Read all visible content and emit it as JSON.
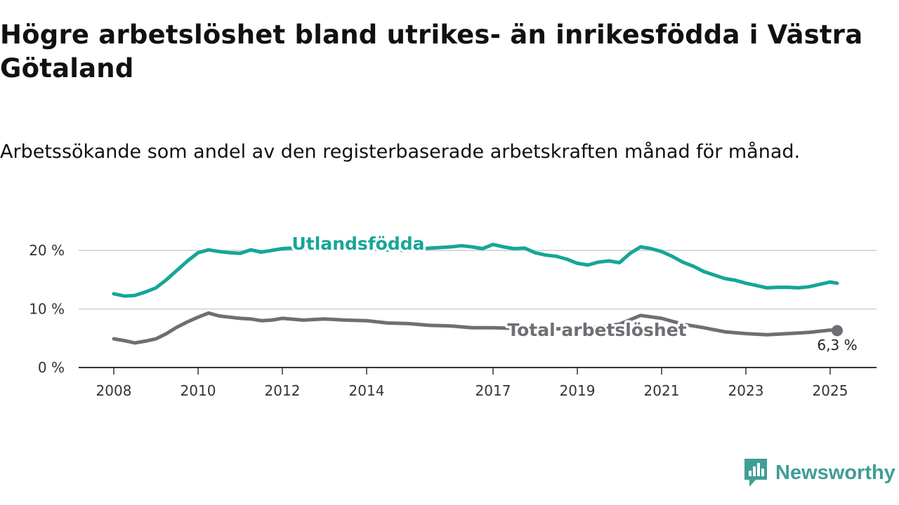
{
  "title": "Högre arbetslöshet bland utrikes- än inrikesfödda i Västra Götaland",
  "subtitle": "Arbetssökande som andel av den registerbaserade arbetskraften månad för månad.",
  "brand": {
    "name": "Newsworthy",
    "icon": "newsworthy-logo-icon",
    "color": "#3f9e96"
  },
  "chart_data": {
    "type": "line",
    "y_ticks": [
      "0 %",
      "10 %",
      "20 %"
    ],
    "y_tick_values": [
      0,
      10,
      20
    ],
    "ylim": [
      0,
      22
    ],
    "x_ticks": [
      "2008",
      "2010",
      "2012",
      "2014",
      "2017",
      "2019",
      "2021",
      "2023",
      "2025"
    ],
    "x_tick_values": [
      "2008-01",
      "2010-01",
      "2012-01",
      "2014-01",
      "2017-01",
      "2019-01",
      "2021-01",
      "2023-01",
      "2025-01"
    ],
    "xlim": [
      "2008-01",
      "2025-04"
    ],
    "grid": true,
    "end_label": "6,3 %",
    "series": [
      {
        "name": "Utlandsfödda",
        "color": "#17a598",
        "points": [
          [
            "2008-01",
            12.6
          ],
          [
            "2008-04",
            12.2
          ],
          [
            "2008-07",
            12.3
          ],
          [
            "2008-10",
            12.9
          ],
          [
            "2009-01",
            13.6
          ],
          [
            "2009-04",
            15.0
          ],
          [
            "2009-07",
            16.6
          ],
          [
            "2009-10",
            18.2
          ],
          [
            "2010-01",
            19.6
          ],
          [
            "2010-04",
            20.1
          ],
          [
            "2010-07",
            19.8
          ],
          [
            "2010-10",
            19.6
          ],
          [
            "2011-01",
            19.5
          ],
          [
            "2011-04",
            20.1
          ],
          [
            "2011-07",
            19.7
          ],
          [
            "2011-10",
            20.0
          ],
          [
            "2012-01",
            20.3
          ],
          [
            "2012-07",
            20.5
          ],
          [
            "2013-01",
            20.6
          ],
          [
            "2013-07",
            20.4
          ],
          [
            "2014-01",
            20.3
          ],
          [
            "2014-07",
            20.1
          ],
          [
            "2015-01",
            20.0
          ],
          [
            "2015-07",
            20.4
          ],
          [
            "2016-01",
            20.6
          ],
          [
            "2016-04",
            20.8
          ],
          [
            "2016-07",
            20.6
          ],
          [
            "2016-10",
            20.3
          ],
          [
            "2017-01",
            21.0
          ],
          [
            "2017-04",
            20.6
          ],
          [
            "2017-07",
            20.3
          ],
          [
            "2017-10",
            20.4
          ],
          [
            "2018-01",
            19.6
          ],
          [
            "2018-04",
            19.2
          ],
          [
            "2018-07",
            19.0
          ],
          [
            "2018-10",
            18.5
          ],
          [
            "2019-01",
            17.8
          ],
          [
            "2019-04",
            17.5
          ],
          [
            "2019-07",
            18.0
          ],
          [
            "2019-10",
            18.2
          ],
          [
            "2020-01",
            17.9
          ],
          [
            "2020-04",
            19.5
          ],
          [
            "2020-07",
            20.6
          ],
          [
            "2020-10",
            20.3
          ],
          [
            "2021-01",
            19.8
          ],
          [
            "2021-04",
            19.0
          ],
          [
            "2021-07",
            18.0
          ],
          [
            "2021-10",
            17.3
          ],
          [
            "2022-01",
            16.4
          ],
          [
            "2022-04",
            15.8
          ],
          [
            "2022-07",
            15.2
          ],
          [
            "2022-10",
            14.9
          ],
          [
            "2023-01",
            14.4
          ],
          [
            "2023-04",
            14.0
          ],
          [
            "2023-07",
            13.6
          ],
          [
            "2023-10",
            13.7
          ],
          [
            "2024-01",
            13.7
          ],
          [
            "2024-04",
            13.6
          ],
          [
            "2024-07",
            13.8
          ],
          [
            "2024-10",
            14.2
          ],
          [
            "2025-01",
            14.6
          ],
          [
            "2025-03",
            14.4
          ]
        ]
      },
      {
        "name": "Total arbetslöshet",
        "color": "#6e6e74",
        "points": [
          [
            "2008-01",
            4.9
          ],
          [
            "2008-04",
            4.6
          ],
          [
            "2008-07",
            4.2
          ],
          [
            "2008-10",
            4.5
          ],
          [
            "2009-01",
            4.9
          ],
          [
            "2009-04",
            5.8
          ],
          [
            "2009-07",
            6.9
          ],
          [
            "2009-10",
            7.8
          ],
          [
            "2010-01",
            8.6
          ],
          [
            "2010-04",
            9.3
          ],
          [
            "2010-07",
            8.8
          ],
          [
            "2010-10",
            8.6
          ],
          [
            "2011-01",
            8.4
          ],
          [
            "2011-04",
            8.3
          ],
          [
            "2011-07",
            8.0
          ],
          [
            "2011-10",
            8.1
          ],
          [
            "2012-01",
            8.4
          ],
          [
            "2012-07",
            8.1
          ],
          [
            "2013-01",
            8.3
          ],
          [
            "2013-07",
            8.1
          ],
          [
            "2014-01",
            8.0
          ],
          [
            "2014-07",
            7.6
          ],
          [
            "2015-01",
            7.5
          ],
          [
            "2015-07",
            7.2
          ],
          [
            "2016-01",
            7.1
          ],
          [
            "2016-07",
            6.8
          ],
          [
            "2017-01",
            6.8
          ],
          [
            "2017-07",
            6.7
          ],
          [
            "2018-01",
            6.6
          ],
          [
            "2018-07",
            6.6
          ],
          [
            "2019-01",
            6.7
          ],
          [
            "2019-07",
            6.9
          ],
          [
            "2020-01",
            7.4
          ],
          [
            "2020-07",
            8.9
          ],
          [
            "2021-01",
            8.4
          ],
          [
            "2021-07",
            7.4
          ],
          [
            "2022-01",
            6.8
          ],
          [
            "2022-07",
            6.1
          ],
          [
            "2023-01",
            5.8
          ],
          [
            "2023-07",
            5.6
          ],
          [
            "2024-01",
            5.8
          ],
          [
            "2024-07",
            6.0
          ],
          [
            "2025-01",
            6.4
          ],
          [
            "2025-03",
            6.3
          ]
        ]
      }
    ]
  }
}
